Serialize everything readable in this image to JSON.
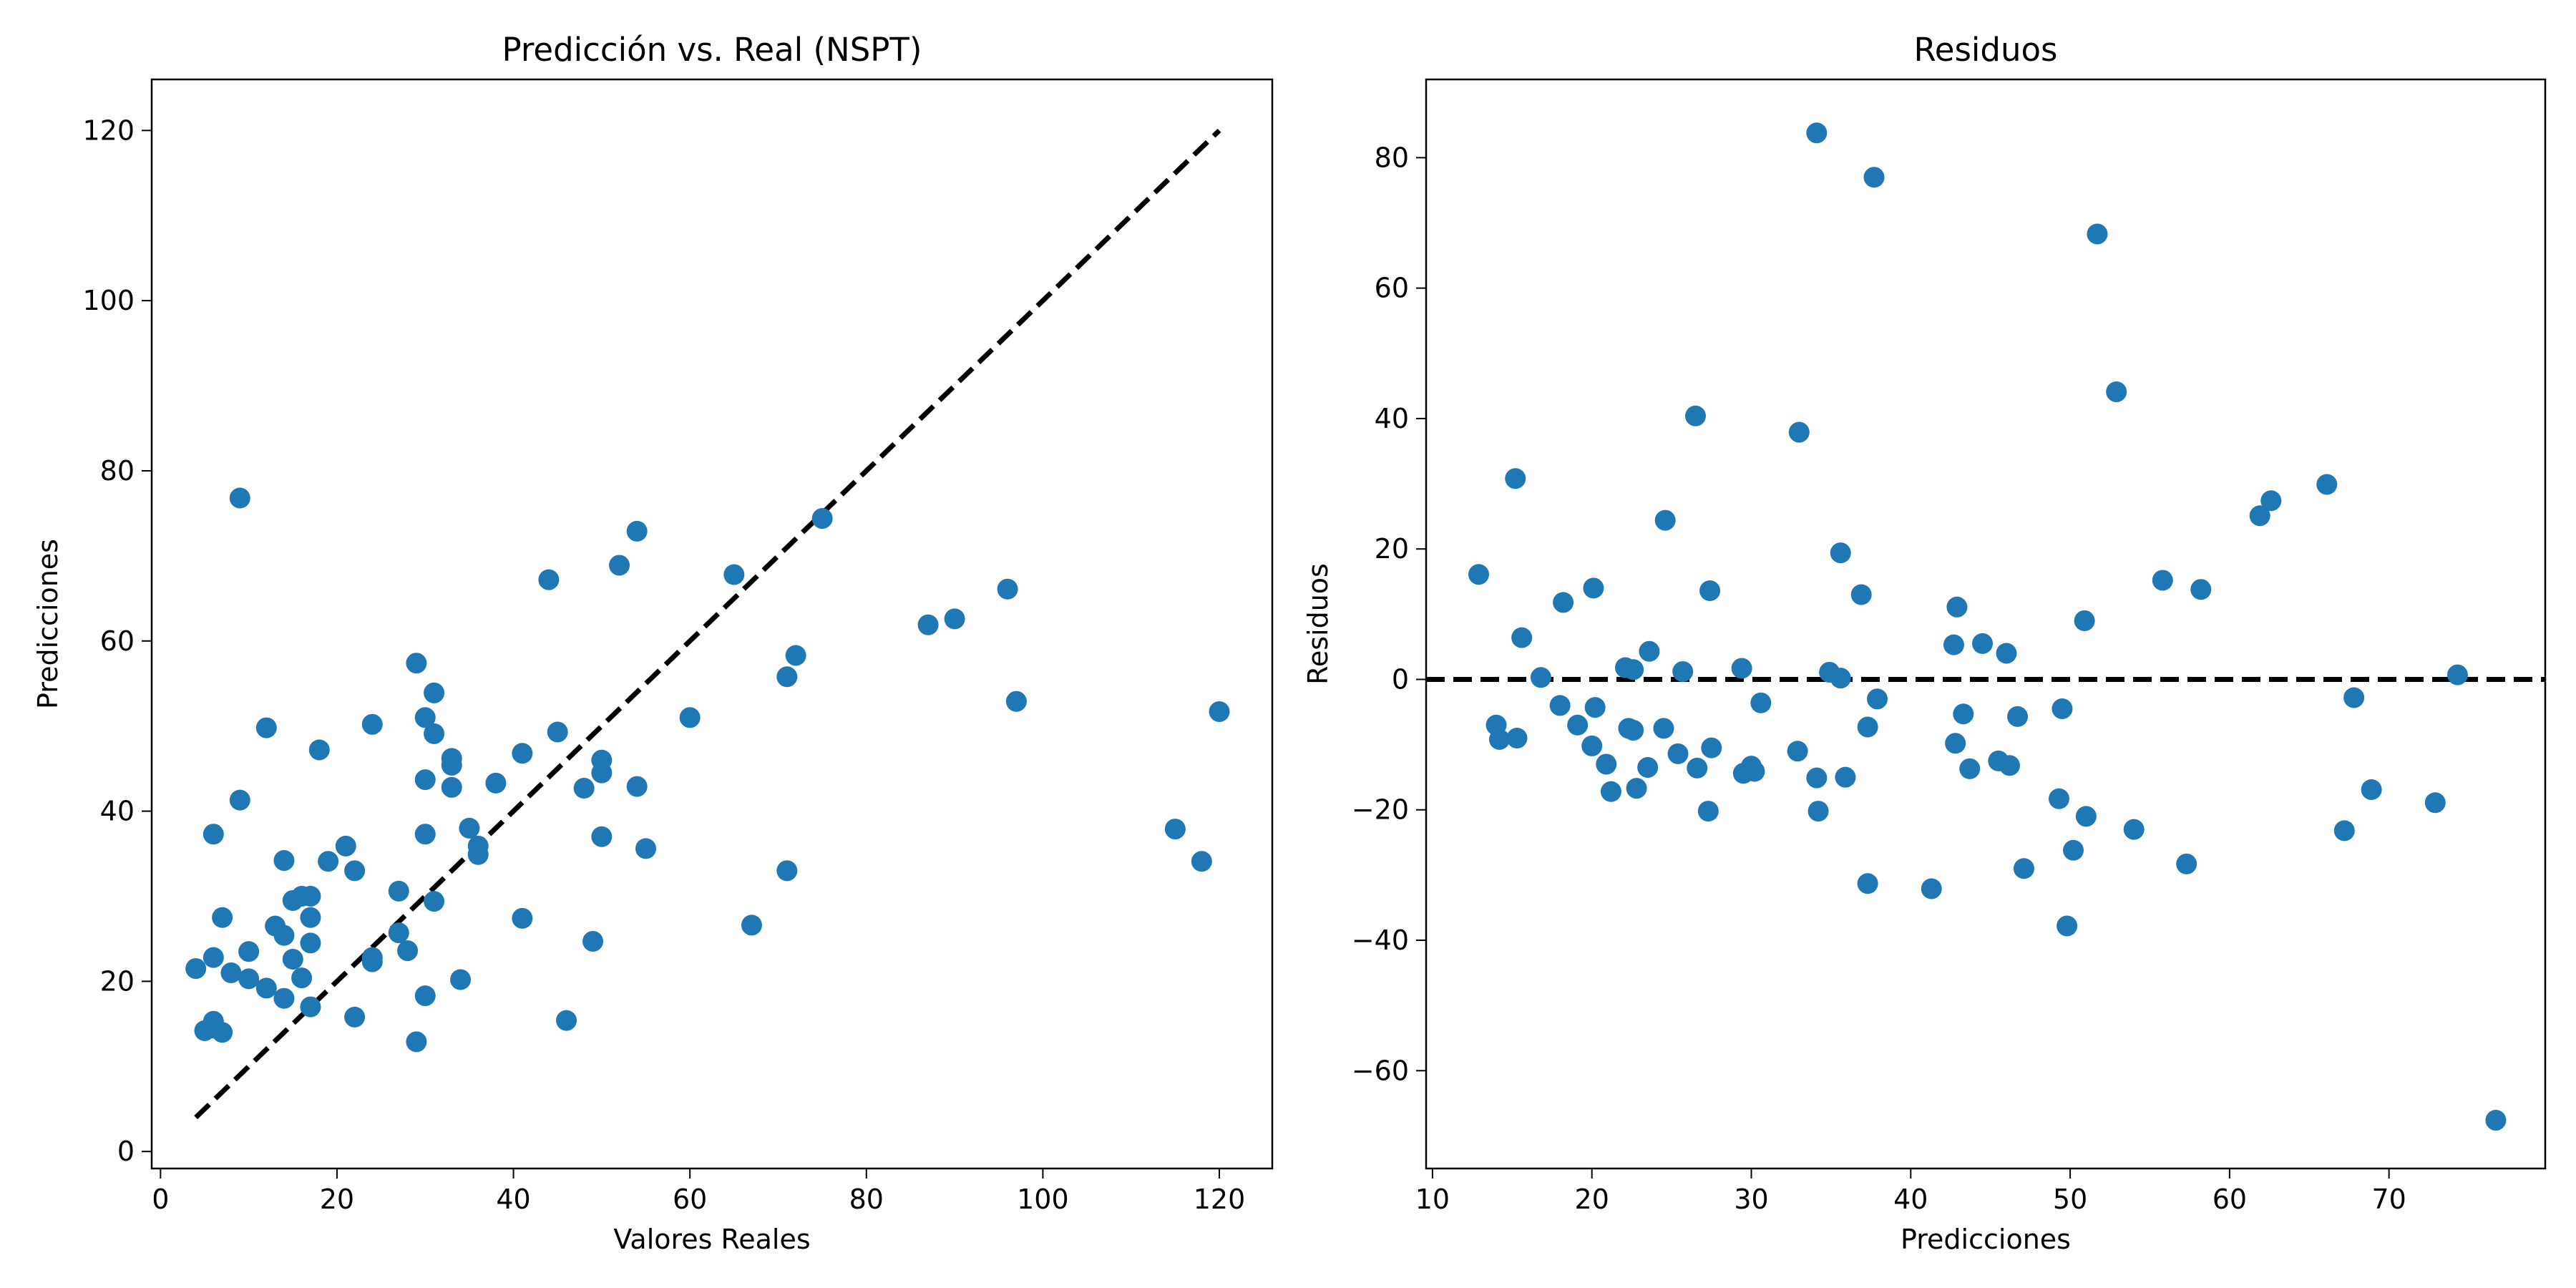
{
  "chart_data": [
    {
      "type": "scatter",
      "title": "Predicción vs. Real (NSPT)",
      "xlabel": "Valores Reales",
      "ylabel": "Predicciones",
      "xlim": [
        -1,
        126
      ],
      "ylim": [
        -2,
        126
      ],
      "xticks": [
        0,
        20,
        40,
        60,
        80,
        100,
        120
      ],
      "yticks": [
        0,
        20,
        40,
        60,
        80,
        100,
        120
      ],
      "grid": false,
      "point_color": "#1f77b4",
      "reference_line": {
        "style": "dashed",
        "color": "#000000",
        "points": [
          [
            4,
            4
          ],
          [
            120,
            120
          ]
        ]
      },
      "points": [
        [
          4,
          21.5
        ],
        [
          5,
          14.2
        ],
        [
          6,
          15.3
        ],
        [
          6,
          14.5
        ],
        [
          6,
          22.8
        ],
        [
          6,
          37.3
        ],
        [
          7,
          27.5
        ],
        [
          7,
          14.0
        ],
        [
          8,
          21.0
        ],
        [
          9,
          76.8
        ],
        [
          9,
          41.3
        ],
        [
          10,
          23.5
        ],
        [
          10,
          20.3
        ],
        [
          12,
          49.8
        ],
        [
          12,
          19.2
        ],
        [
          13,
          26.5
        ],
        [
          14,
          18.0
        ],
        [
          14,
          25.4
        ],
        [
          14,
          34.2
        ],
        [
          15,
          22.6
        ],
        [
          15,
          29.5
        ],
        [
          16,
          30.0
        ],
        [
          16,
          20.4
        ],
        [
          17,
          30.0
        ],
        [
          17,
          27.5
        ],
        [
          17,
          24.5
        ],
        [
          17,
          17.0
        ],
        [
          18,
          47.2
        ],
        [
          19,
          34.1
        ],
        [
          21,
          35.9
        ],
        [
          22,
          33.0
        ],
        [
          22,
          15.8
        ],
        [
          24,
          50.2
        ],
        [
          24,
          22.8
        ],
        [
          24,
          22.3
        ],
        [
          27,
          30.6
        ],
        [
          27,
          25.7
        ],
        [
          28,
          23.6
        ],
        [
          29,
          57.4
        ],
        [
          29,
          12.9
        ],
        [
          30,
          51.0
        ],
        [
          30,
          43.7
        ],
        [
          30,
          37.3
        ],
        [
          30,
          18.3
        ],
        [
          31,
          53.9
        ],
        [
          31,
          49.1
        ],
        [
          31,
          29.4
        ],
        [
          33,
          46.2
        ],
        [
          33,
          45.4
        ],
        [
          33,
          42.8
        ],
        [
          34,
          20.2
        ],
        [
          35,
          38.0
        ],
        [
          36,
          35.9
        ],
        [
          36,
          34.9
        ],
        [
          38,
          43.3
        ],
        [
          41,
          46.8
        ],
        [
          41,
          27.4
        ],
        [
          44,
          67.2
        ],
        [
          45,
          49.3
        ],
        [
          46,
          15.4
        ],
        [
          48,
          42.7
        ],
        [
          49,
          24.7
        ],
        [
          50,
          46.0
        ],
        [
          50,
          44.5
        ],
        [
          50,
          37.0
        ],
        [
          52,
          68.9
        ],
        [
          54,
          72.9
        ],
        [
          54,
          42.9
        ],
        [
          55,
          35.6
        ],
        [
          60,
          51.0
        ],
        [
          65,
          67.8
        ],
        [
          67,
          26.6
        ],
        [
          71,
          55.8
        ],
        [
          71,
          33.0
        ],
        [
          72,
          58.3
        ],
        [
          75,
          74.4
        ],
        [
          87,
          61.9
        ],
        [
          90,
          62.6
        ],
        [
          96,
          66.1
        ],
        [
          97,
          52.9
        ],
        [
          115,
          37.9
        ],
        [
          118,
          34.1
        ],
        [
          120,
          51.7
        ]
      ]
    },
    {
      "type": "scatter",
      "title": "Residuos",
      "xlabel": "Predicciones",
      "ylabel": "Residuos",
      "xlim": [
        9.6,
        79.8
      ],
      "ylim": [
        -75,
        92
      ],
      "xticks": [
        10,
        20,
        30,
        40,
        50,
        60,
        70
      ],
      "yticks": [
        -60,
        -40,
        -20,
        0,
        20,
        40,
        60,
        80
      ],
      "yticklabels": [
        "−60",
        "−40",
        "−20",
        "0",
        "20",
        "40",
        "60",
        "80"
      ],
      "grid": false,
      "point_color": "#1f77b4",
      "reference_line": {
        "style": "dashed",
        "color": "#000000",
        "y": 0
      },
      "points": [
        [
          12.9,
          16.1
        ],
        [
          14.0,
          -7.0
        ],
        [
          14.2,
          -9.2
        ],
        [
          15.2,
          30.8
        ],
        [
          15.3,
          -9.0
        ],
        [
          15.6,
          6.4
        ],
        [
          16.8,
          0.3
        ],
        [
          18.0,
          -4.0
        ],
        [
          18.2,
          11.8
        ],
        [
          19.1,
          -7.0
        ],
        [
          20.0,
          -10.2
        ],
        [
          20.1,
          14.0
        ],
        [
          20.2,
          -4.3
        ],
        [
          20.9,
          -13.0
        ],
        [
          21.2,
          -17.2
        ],
        [
          22.1,
          1.8
        ],
        [
          22.3,
          -7.5
        ],
        [
          22.6,
          -7.8
        ],
        [
          22.6,
          1.5
        ],
        [
          22.8,
          -16.7
        ],
        [
          23.5,
          -13.5
        ],
        [
          23.6,
          4.3
        ],
        [
          24.5,
          -7.5
        ],
        [
          24.6,
          24.4
        ],
        [
          25.4,
          -11.4
        ],
        [
          25.7,
          1.2
        ],
        [
          26.5,
          40.4
        ],
        [
          26.6,
          -13.6
        ],
        [
          27.3,
          -20.2
        ],
        [
          27.4,
          13.6
        ],
        [
          27.5,
          -10.5
        ],
        [
          29.4,
          1.7
        ],
        [
          29.5,
          -14.4
        ],
        [
          30.0,
          -13.3
        ],
        [
          30.2,
          -14.1
        ],
        [
          30.6,
          -3.6
        ],
        [
          32.9,
          -11.0
        ],
        [
          33.0,
          37.9
        ],
        [
          34.1,
          -15.1
        ],
        [
          34.1,
          83.8
        ],
        [
          34.2,
          -20.2
        ],
        [
          34.9,
          1.1
        ],
        [
          35.6,
          19.4
        ],
        [
          35.6,
          0.2
        ],
        [
          35.9,
          -15.0
        ],
        [
          36.9,
          13.0
        ],
        [
          37.3,
          -31.3
        ],
        [
          37.3,
          -7.3
        ],
        [
          37.7,
          77.0
        ],
        [
          37.9,
          -3.0
        ],
        [
          41.3,
          -32.1
        ],
        [
          42.7,
          5.3
        ],
        [
          42.8,
          -9.8
        ],
        [
          42.9,
          11.1
        ],
        [
          43.3,
          -5.3
        ],
        [
          43.7,
          -13.7
        ],
        [
          44.5,
          5.5
        ],
        [
          45.5,
          -12.5
        ],
        [
          46.0,
          4.0
        ],
        [
          46.2,
          -13.2
        ],
        [
          46.7,
          -5.7
        ],
        [
          47.1,
          -29.0
        ],
        [
          49.3,
          -18.3
        ],
        [
          49.5,
          -4.5
        ],
        [
          49.8,
          -37.8
        ],
        [
          50.2,
          -26.2
        ],
        [
          50.9,
          9.0
        ],
        [
          51.0,
          -21.0
        ],
        [
          51.7,
          68.3
        ],
        [
          52.9,
          44.1
        ],
        [
          54.0,
          -23.0
        ],
        [
          55.8,
          15.2
        ],
        [
          57.3,
          -28.3
        ],
        [
          58.2,
          13.8
        ],
        [
          61.9,
          25.1
        ],
        [
          62.6,
          27.4
        ],
        [
          66.1,
          29.9
        ],
        [
          67.2,
          -23.2
        ],
        [
          67.8,
          -2.8
        ],
        [
          68.9,
          -16.9
        ],
        [
          72.9,
          -18.9
        ],
        [
          74.3,
          0.7
        ],
        [
          76.7,
          -67.6
        ]
      ]
    }
  ]
}
